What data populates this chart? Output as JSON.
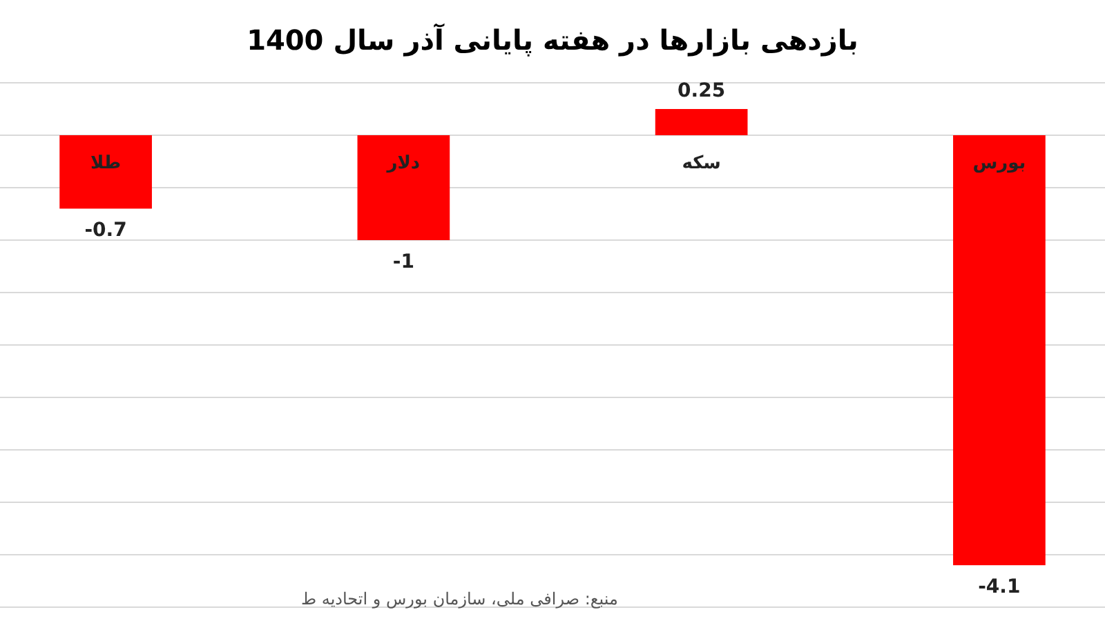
{
  "chart_data": {
    "type": "bar",
    "title": "بازدهی بازارها در هفته پایانی آذر سال 1400",
    "categories": [
      "طلا",
      "دلار",
      "سکه",
      "بورس"
    ],
    "values": [
      -0.7,
      -1,
      0.25,
      -4.1
    ],
    "color": "#ff0000",
    "ylim": [
      -4.5,
      0.5
    ],
    "yticks": [
      {
        "value": 0.5,
        "label": null
      },
      {
        "value": 0,
        "label": null
      },
      {
        "value": -0.5,
        "label": null
      },
      {
        "value": -1,
        "label": null
      },
      {
        "value": -1.5,
        "label": null
      },
      {
        "value": -2,
        "label": null
      },
      {
        "value": -2.5,
        "label": null
      },
      {
        "value": -3,
        "label": null
      },
      {
        "value": -3.5,
        "label": null
      },
      {
        "value": -4,
        "label": null
      },
      {
        "value": -4.5,
        "label": null
      }
    ],
    "grid": "y",
    "data_labels": true,
    "annotations": [
      "منبع: صرافی ملی، سازمان بورس و اتحادیه ط"
    ]
  }
}
